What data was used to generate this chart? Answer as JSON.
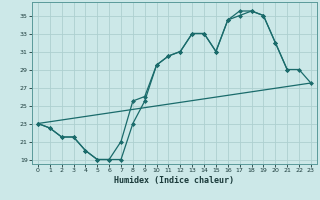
{
  "xlabel": "Humidex (Indice chaleur)",
  "xlim": [
    -0.5,
    23.5
  ],
  "ylim": [
    18.5,
    36.5
  ],
  "xticks": [
    0,
    1,
    2,
    3,
    4,
    5,
    6,
    7,
    8,
    9,
    10,
    11,
    12,
    13,
    14,
    15,
    16,
    17,
    18,
    19,
    20,
    21,
    22,
    23
  ],
  "yticks": [
    19,
    21,
    23,
    25,
    27,
    29,
    31,
    33,
    35
  ],
  "background_color": "#cce8e8",
  "grid_color": "#add0d0",
  "line_color": "#1a6b6b",
  "line1_x": [
    0,
    1,
    2,
    3,
    4,
    5,
    6,
    7,
    8,
    9,
    10,
    11,
    12,
    13,
    14,
    15,
    16,
    17,
    18,
    19,
    20,
    21,
    22,
    23
  ],
  "line1_y": [
    23.0,
    22.5,
    21.5,
    21.5,
    20.0,
    19.0,
    19.0,
    21.0,
    25.5,
    26.0,
    29.5,
    30.5,
    31.0,
    33.0,
    33.0,
    31.0,
    34.5,
    35.0,
    35.5,
    35.0,
    32.0,
    29.0,
    29.0,
    27.5
  ],
  "line2_x": [
    0,
    1,
    2,
    3,
    4,
    5,
    6,
    7,
    8,
    9,
    10,
    11,
    12,
    13,
    14,
    15,
    16,
    17,
    18,
    19,
    20,
    21
  ],
  "line2_y": [
    23.0,
    22.5,
    21.5,
    21.5,
    20.0,
    19.0,
    19.0,
    19.0,
    23.0,
    25.5,
    29.5,
    30.5,
    31.0,
    33.0,
    33.0,
    31.0,
    34.5,
    35.5,
    35.5,
    35.0,
    32.0,
    29.0
  ],
  "line3_x": [
    0,
    23
  ],
  "line3_y": [
    23.0,
    27.5
  ]
}
